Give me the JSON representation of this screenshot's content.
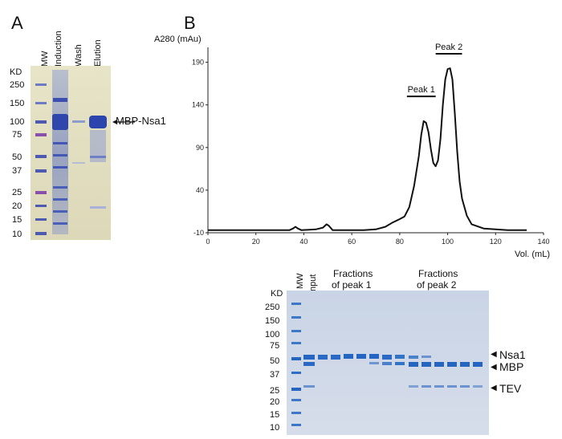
{
  "panel_a": {
    "letter": "A",
    "kd_label": "KD",
    "mw_markers": [
      "250",
      "150",
      "100",
      "75",
      "50",
      "37",
      "25",
      "20",
      "15",
      "10"
    ],
    "lanes": [
      "MW",
      "Induction",
      "Wash",
      "Elution"
    ],
    "band_label": "MBP-Nsa1"
  },
  "panel_b": {
    "letter": "B",
    "gel": {
      "kd_label": "KD",
      "mw_markers": [
        "250",
        "150",
        "100",
        "75",
        "50",
        "37",
        "25",
        "20",
        "15",
        "10"
      ],
      "lane_mw": "MW",
      "lane_input": "Input",
      "group1_label": [
        "Fractions",
        "of peak 1"
      ],
      "group2_label": [
        "Fractions",
        "of peak 2"
      ],
      "band_labels": [
        "Nsa1",
        "MBP",
        "TEV"
      ]
    }
  },
  "chart_data": {
    "type": "line",
    "title": "",
    "ylabel": "A280 (mAu)",
    "xlabel": "Vol. (mL)",
    "xlim": [
      0,
      140
    ],
    "ylim": [
      -10,
      200
    ],
    "xticks": [
      0,
      20,
      40,
      60,
      80,
      100,
      120,
      140
    ],
    "yticks": [
      -10,
      40,
      90,
      140,
      190
    ],
    "series": [
      {
        "name": "A280",
        "x": [
          0,
          10,
          20,
          30,
          34,
          35.5,
          36.5,
          37.5,
          39,
          45,
          48,
          49.5,
          50.5,
          52,
          55,
          60,
          65,
          70,
          74,
          77,
          80,
          82,
          84,
          86,
          88,
          89,
          90,
          91,
          92,
          93,
          94,
          95,
          96,
          97,
          98,
          99,
          100,
          101,
          102,
          103,
          104,
          105,
          106,
          108,
          110,
          115,
          120,
          125,
          130,
          133
        ],
        "y": [
          -7,
          -7,
          -7,
          -7,
          -7,
          -5,
          -3,
          -5,
          -7,
          -6,
          -4,
          0,
          -2,
          -7,
          -7,
          -7,
          -7,
          -6,
          -3,
          2,
          6,
          9,
          20,
          45,
          80,
          105,
          121,
          119,
          108,
          88,
          72,
          68,
          75,
          100,
          140,
          170,
          182,
          183,
          170,
          130,
          85,
          50,
          30,
          10,
          0,
          -5,
          -6,
          -7,
          -7,
          -7
        ]
      }
    ],
    "annotations": [
      {
        "label": "Peak 1",
        "x_start": 83,
        "x_end": 95
      },
      {
        "label": "Peak 2",
        "x_start": 95,
        "x_end": 106
      }
    ]
  }
}
